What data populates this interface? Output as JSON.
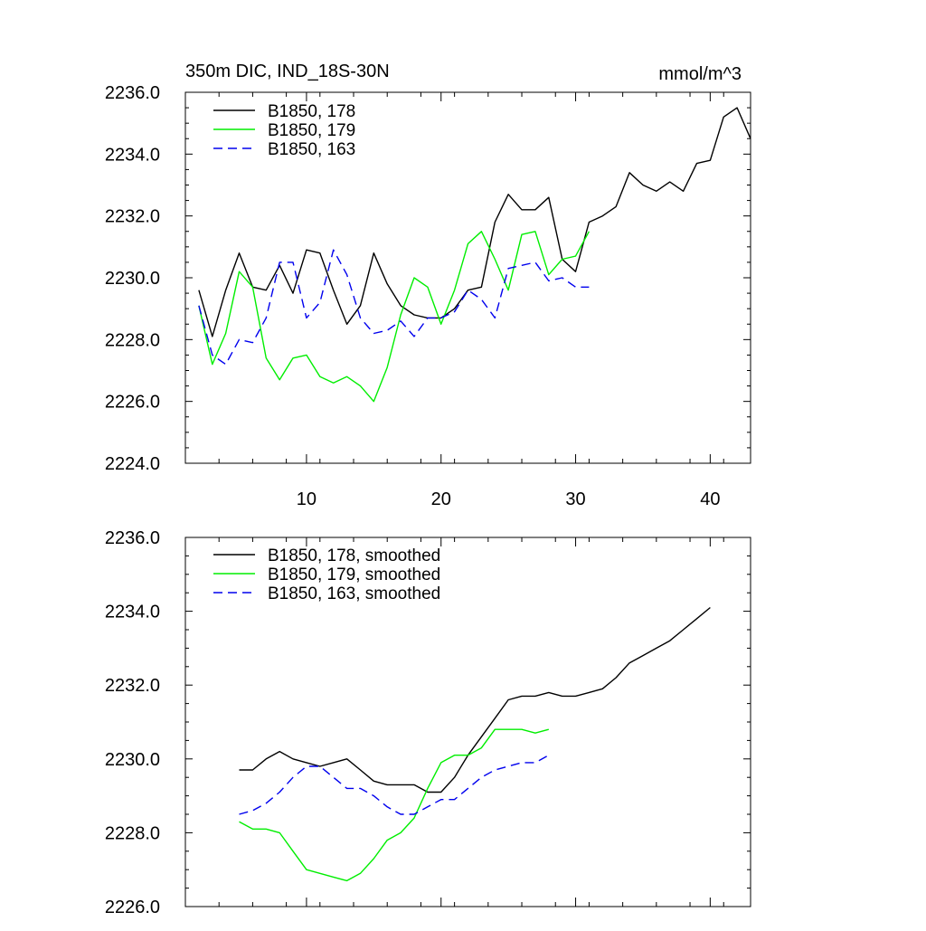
{
  "chart_data": [
    {
      "type": "line",
      "title": "350m DIC, IND_18S-30N",
      "units": "mmol/m^3",
      "ylim": [
        2224.0,
        2236.0
      ],
      "xlim": [
        1,
        43
      ],
      "yticks": [
        2224.0,
        2226.0,
        2228.0,
        2230.0,
        2232.0,
        2234.0,
        2236.0
      ],
      "ytick_labels": [
        "2224.0",
        "2226.0",
        "2228.0",
        "2230.0",
        "2232.0",
        "2234.0",
        "2236.0"
      ],
      "xticks": [
        10,
        20,
        30,
        40
      ],
      "xtick_labels": [
        "10",
        "20",
        "30",
        "40"
      ],
      "legend_position": "top-left",
      "series": [
        {
          "name": "B1850, 178",
          "color": "#000000",
          "dash": "solid",
          "x": [
            2,
            3,
            4,
            5,
            6,
            7,
            8,
            9,
            10,
            11,
            12,
            13,
            14,
            15,
            16,
            17,
            18,
            19,
            20,
            21,
            22,
            23,
            24,
            25,
            26,
            27,
            28,
            29,
            30,
            31,
            32,
            33,
            34,
            35,
            36,
            37,
            38,
            39,
            40,
            41,
            42,
            43
          ],
          "values": [
            2229.6,
            2228.1,
            2229.6,
            2230.8,
            2229.7,
            2229.6,
            2230.4,
            2229.5,
            2230.9,
            2230.8,
            2229.6,
            2228.5,
            2229.1,
            2230.8,
            2229.8,
            2229.1,
            2228.8,
            2228.7,
            2228.7,
            2229.0,
            2229.6,
            2229.7,
            2231.8,
            2232.7,
            2232.2,
            2232.2,
            2232.6,
            2230.6,
            2230.2,
            2231.8,
            2232.0,
            2232.3,
            2233.4,
            2233.0,
            2232.8,
            2233.1,
            2232.8,
            2233.7,
            2233.8,
            2235.2,
            2235.5,
            2234.5
          ]
        },
        {
          "name": "B1850, 179",
          "color": "#00ee00",
          "dash": "solid",
          "x": [
            2,
            3,
            4,
            5,
            6,
            7,
            8,
            9,
            10,
            11,
            12,
            13,
            14,
            15,
            16,
            17,
            18,
            19,
            20,
            21,
            22,
            23,
            24,
            25,
            26,
            27,
            28,
            29,
            30,
            31
          ],
          "values": [
            2229.1,
            2227.2,
            2228.2,
            2230.2,
            2229.7,
            2227.4,
            2226.7,
            2227.4,
            2227.5,
            2226.8,
            2226.6,
            2226.8,
            2226.5,
            2226.0,
            2227.1,
            2228.8,
            2230.0,
            2229.7,
            2228.5,
            2229.6,
            2231.1,
            2231.5,
            2230.6,
            2229.6,
            2231.4,
            2231.5,
            2230.1,
            2230.6,
            2230.7,
            2231.5
          ]
        },
        {
          "name": "B1850, 163",
          "color": "#0000ee",
          "dash": "dashed",
          "x": [
            2,
            3,
            4,
            5,
            6,
            7,
            8,
            9,
            10,
            11,
            12,
            13,
            14,
            15,
            16,
            17,
            18,
            19,
            20,
            21,
            22,
            23,
            24,
            25,
            26,
            27,
            28,
            29,
            30,
            31
          ],
          "values": [
            2229.1,
            2227.5,
            2227.2,
            2228.0,
            2227.9,
            2228.7,
            2230.5,
            2230.5,
            2228.7,
            2229.2,
            2230.9,
            2230.1,
            2228.7,
            2228.2,
            2228.3,
            2228.6,
            2228.1,
            2228.7,
            2228.7,
            2228.9,
            2229.6,
            2229.3,
            2228.7,
            2230.3,
            2230.4,
            2230.5,
            2229.9,
            2230.0,
            2229.7,
            2229.7
          ]
        }
      ]
    },
    {
      "type": "line",
      "title": "",
      "units": "",
      "ylim": [
        2226.0,
        2236.0
      ],
      "xlim": [
        1,
        43
      ],
      "yticks": [
        2226.0,
        2228.0,
        2230.0,
        2232.0,
        2234.0,
        2236.0
      ],
      "ytick_labels": [
        "2226.0",
        "2228.0",
        "2230.0",
        "2232.0",
        "2234.0",
        "2236.0"
      ],
      "xticks": [
        10,
        20,
        30,
        40
      ],
      "xtick_labels": [],
      "legend_position": "top-left",
      "series": [
        {
          "name": "B1850, 178, smoothed",
          "color": "#000000",
          "dash": "solid",
          "x": [
            5,
            6,
            7,
            8,
            9,
            10,
            11,
            12,
            13,
            14,
            15,
            16,
            17,
            18,
            19,
            20,
            21,
            22,
            23,
            24,
            25,
            26,
            27,
            28,
            29,
            30,
            31,
            32,
            33,
            34,
            35,
            36,
            37,
            38,
            39,
            40
          ],
          "values": [
            2229.7,
            2229.7,
            2230.0,
            2230.2,
            2230.0,
            2229.9,
            2229.8,
            2229.9,
            2230.0,
            2229.7,
            2229.4,
            2229.3,
            2229.3,
            2229.3,
            2229.1,
            2229.1,
            2229.5,
            2230.1,
            2230.6,
            2231.1,
            2231.6,
            2231.7,
            2231.7,
            2231.8,
            2231.7,
            2231.7,
            2231.8,
            2231.9,
            2232.2,
            2232.6,
            2232.8,
            2233.0,
            2233.2,
            2233.5,
            2233.8,
            2234.1
          ]
        },
        {
          "name": "B1850, 179, smoothed",
          "color": "#00ee00",
          "dash": "solid",
          "x": [
            5,
            6,
            7,
            8,
            9,
            10,
            11,
            12,
            13,
            14,
            15,
            16,
            17,
            18,
            19,
            20,
            21,
            22,
            23,
            24,
            25,
            26,
            27,
            28
          ],
          "values": [
            2228.3,
            2228.1,
            2228.1,
            2228.0,
            2227.5,
            2227.0,
            2226.9,
            2226.8,
            2226.7,
            2226.9,
            2227.3,
            2227.8,
            2228.0,
            2228.4,
            2229.2,
            2229.9,
            2230.1,
            2230.1,
            2230.3,
            2230.8,
            2230.8,
            2230.8,
            2230.7,
            2230.8
          ]
        },
        {
          "name": "B1850, 163, smoothed",
          "color": "#0000ee",
          "dash": "dashed",
          "x": [
            5,
            6,
            7,
            8,
            9,
            10,
            11,
            12,
            13,
            14,
            15,
            16,
            17,
            18,
            19,
            20,
            21,
            22,
            23,
            24,
            25,
            26,
            27,
            28
          ],
          "values": [
            2228.5,
            2228.6,
            2228.8,
            2229.1,
            2229.5,
            2229.8,
            2229.8,
            2229.5,
            2229.2,
            2229.2,
            2229.0,
            2228.7,
            2228.5,
            2228.5,
            2228.7,
            2228.9,
            2228.9,
            2229.2,
            2229.5,
            2229.7,
            2229.8,
            2229.9,
            2229.9,
            2230.1
          ]
        }
      ]
    }
  ]
}
